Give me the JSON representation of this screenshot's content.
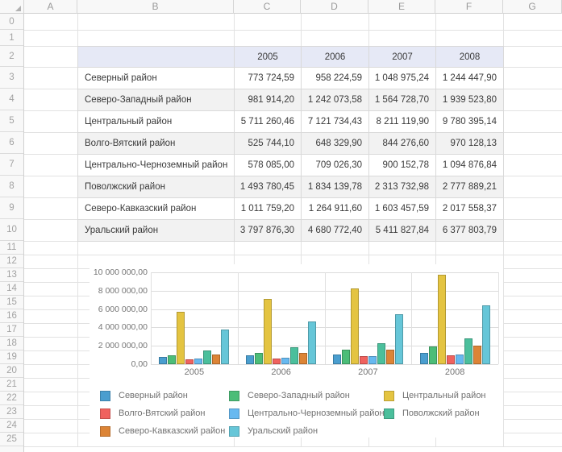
{
  "sheet": {
    "column_headers": [
      "A",
      "B",
      "C",
      "D",
      "E",
      "F",
      "G"
    ],
    "row_headers": [
      "0",
      "1",
      "2",
      "3",
      "4",
      "5",
      "6",
      "7",
      "8",
      "9",
      "10",
      "11",
      "12",
      "13",
      "14",
      "15",
      "16",
      "17",
      "18",
      "19",
      "20",
      "21",
      "22",
      "23",
      "24",
      "25"
    ]
  },
  "table": {
    "year_headers": [
      "2005",
      "2006",
      "2007",
      "2008"
    ],
    "rows": [
      {
        "name": "Северный район",
        "values": [
          "773 724,59",
          "958 224,59",
          "1 048 975,24",
          "1 244 447,90"
        ]
      },
      {
        "name": "Северо-Западный район",
        "values": [
          "981 914,20",
          "1 242 073,58",
          "1 564 728,70",
          "1 939 523,80"
        ]
      },
      {
        "name": "Центральный район",
        "values": [
          "5 711 260,46",
          "7 121 734,43",
          "8 211 119,90",
          "9 780 395,14"
        ]
      },
      {
        "name": "Волго-Вятский район",
        "values": [
          "525 744,10",
          "648 329,90",
          "844 276,60",
          "970 128,13"
        ]
      },
      {
        "name": "Центрально-Черноземный район",
        "values": [
          "578 085,00",
          "709 026,30",
          "900 152,78",
          "1 094 876,84"
        ]
      },
      {
        "name": "Поволжский район",
        "values": [
          "1 493 780,45",
          "1 834 139,78",
          "2 313 732,98",
          "2 777 889,21"
        ]
      },
      {
        "name": "Северо-Кавказский район",
        "values": [
          "1 011 759,20",
          "1 264 911,60",
          "1 603 457,59",
          "2 017 558,37"
        ]
      },
      {
        "name": "Уральский район",
        "values": [
          "3 797 876,30",
          "4 680 772,40",
          "5 411 827,84",
          "6 377 803,79"
        ]
      }
    ],
    "header_bg": "#e6e9f6",
    "band_bg": "#f2f2f2"
  },
  "chart_data": {
    "type": "bar",
    "categories": [
      "2005",
      "2006",
      "2007",
      "2008"
    ],
    "series": [
      {
        "name": "Северный район",
        "color": "#4a9ecf",
        "values": [
          773724.59,
          958224.59,
          1048975.24,
          1244447.9
        ]
      },
      {
        "name": "Северо-Западный район",
        "color": "#4cbd78",
        "values": [
          981914.2,
          1242073.58,
          1564728.7,
          1939523.8
        ]
      },
      {
        "name": "Центральный район",
        "color": "#e4c441",
        "values": [
          5711260.46,
          7121734.43,
          8211119.9,
          9780395.14
        ]
      },
      {
        "name": "Волго-Вятский район",
        "color": "#f0625f",
        "values": [
          525744.1,
          648329.9,
          844276.6,
          970128.13
        ]
      },
      {
        "name": "Центрально-Черноземный район",
        "color": "#67b9f0",
        "values": [
          578085.0,
          709026.3,
          900152.78,
          1094876.84
        ]
      },
      {
        "name": "Поволжский район",
        "color": "#4bbf9c",
        "values": [
          1493780.45,
          1834139.78,
          2313732.98,
          2777889.21
        ]
      },
      {
        "name": "Северо-Кавказский район",
        "color": "#dc8436",
        "values": [
          1011759.2,
          1264911.6,
          1603457.59,
          2017558.37
        ]
      },
      {
        "name": "Уральский район",
        "color": "#66c6d8",
        "values": [
          3797876.3,
          4680772.4,
          5411827.84,
          6377803.79
        ]
      }
    ],
    "y_ticks": [
      "10 000 000,00",
      "8 000 000,00",
      "6 000 000,00",
      "4 000 000,00",
      "2 000 000,00",
      "0,00"
    ],
    "ylim": [
      0,
      10000000
    ],
    "grid": true,
    "legend_position": "bottom",
    "legend_columns": 3,
    "title": "",
    "xlabel": "",
    "ylabel": ""
  }
}
